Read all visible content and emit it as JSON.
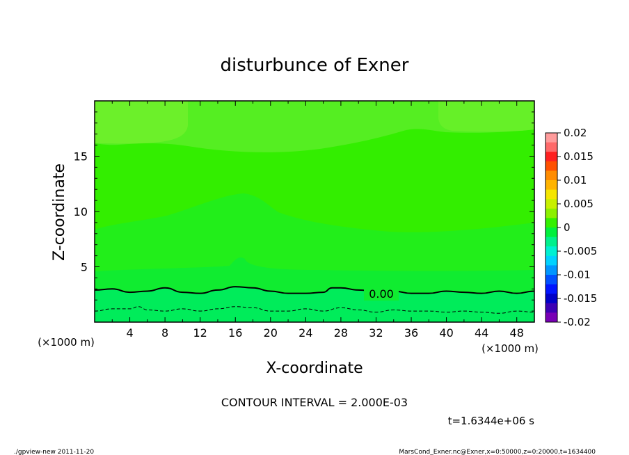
{
  "chart_data": {
    "type": "contour",
    "title": "disturbunce of Exner",
    "xlabel": "X-coordinate",
    "ylabel": "Z-coordinate",
    "x_unit_note": "(×1000 m)",
    "x_unit_note_right": "(×1000 m)",
    "xlim": [
      0,
      50
    ],
    "ylim": [
      0,
      20
    ],
    "x_ticks": [
      4,
      8,
      12,
      16,
      20,
      24,
      28,
      32,
      36,
      40,
      44,
      48
    ],
    "y_ticks": [
      5,
      10,
      15
    ],
    "contour_label": "0.00",
    "contour_interval_text": "CONTOUR INTERVAL = 2.000E-03",
    "time_text": "t=1.6344e+06 s",
    "colorbar": {
      "ticks": [
        "0.02",
        "0.015",
        "0.01",
        "0.005",
        "0",
        "-0.005",
        "-0.01",
        "-0.015",
        "-0.02"
      ],
      "levels": [
        0.02,
        0.015,
        0.01,
        0.005,
        0,
        -0.005,
        -0.01,
        -0.015,
        -0.02
      ],
      "colors": [
        "#ff9c9c",
        "#ff6a6a",
        "#ff2020",
        "#ff5000",
        "#ff8c00",
        "#ffb400",
        "#f5e600",
        "#c8f000",
        "#8cf000",
        "#33f000",
        "#00f03c",
        "#00f08c",
        "#00f0d2",
        "#00d2ff",
        "#0096ff",
        "#0050ff",
        "#0014ff",
        "#0000c8",
        "#3c00b4",
        "#7800b4"
      ]
    },
    "zero_contour_x": [
      0,
      2,
      4,
      6,
      8,
      10,
      12,
      14,
      16,
      18,
      20,
      22,
      24,
      26,
      27,
      28,
      30,
      32,
      34,
      36,
      38,
      40,
      42,
      44,
      46,
      48,
      50
    ],
    "zero_contour_z": [
      2.9,
      3.0,
      2.7,
      2.8,
      3.1,
      2.7,
      2.6,
      2.9,
      3.2,
      3.1,
      2.8,
      2.6,
      2.6,
      2.7,
      3.1,
      3.1,
      2.9,
      2.8,
      2.8,
      2.6,
      2.6,
      2.8,
      2.7,
      2.6,
      2.8,
      2.6,
      2.8
    ],
    "neg_contour_x": [
      0,
      2,
      4,
      5,
      6,
      8,
      10,
      12,
      14,
      16,
      18,
      20,
      22,
      24,
      26,
      28,
      30,
      32,
      34,
      36,
      38,
      40,
      42,
      44,
      46,
      48,
      50
    ],
    "neg_contour_z": [
      1.0,
      1.2,
      1.2,
      1.4,
      1.1,
      1.0,
      1.2,
      1.0,
      1.2,
      1.4,
      1.3,
      1.0,
      1.0,
      1.2,
      1.0,
      1.3,
      1.1,
      0.9,
      1.1,
      1.0,
      1.0,
      0.9,
      1.0,
      0.9,
      0.8,
      1.0,
      0.9
    ]
  },
  "footer": {
    "left": "./gpview-new  2011-11-20",
    "right": "MarsCond_Exner.nc@Exner,x=0:50000,z=0:20000,t=1634400"
  }
}
